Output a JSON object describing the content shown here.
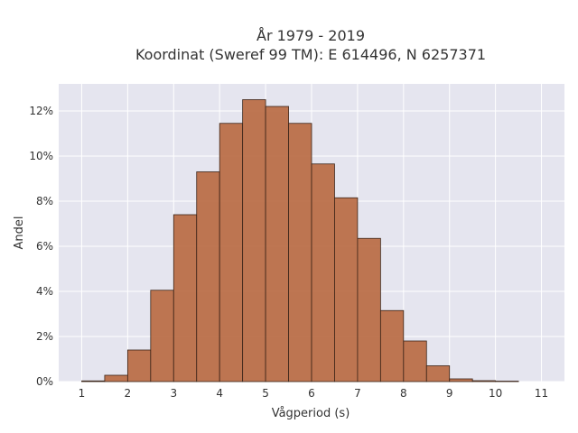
{
  "chart_data": {
    "type": "bar",
    "title": "År 1979 - 2019",
    "subtitle": "Koordinat (Sweref 99 TM): E 614496, N 6257371",
    "xlabel": "Vågperiod (s)",
    "ylabel": "Andel",
    "bin_width": 0.5,
    "bins": [
      {
        "x": 1.0,
        "value": 0.03
      },
      {
        "x": 1.5,
        "value": 0.28
      },
      {
        "x": 2.0,
        "value": 1.4
      },
      {
        "x": 2.5,
        "value": 4.05
      },
      {
        "x": 3.0,
        "value": 7.4
      },
      {
        "x": 3.5,
        "value": 9.3
      },
      {
        "x": 4.0,
        "value": 11.45
      },
      {
        "x": 4.5,
        "value": 12.5
      },
      {
        "x": 5.0,
        "value": 12.2
      },
      {
        "x": 5.5,
        "value": 11.45
      },
      {
        "x": 6.0,
        "value": 9.65
      },
      {
        "x": 6.5,
        "value": 8.15
      },
      {
        "x": 7.0,
        "value": 6.35
      },
      {
        "x": 7.5,
        "value": 3.15
      },
      {
        "x": 8.0,
        "value": 1.8
      },
      {
        "x": 8.5,
        "value": 0.7
      },
      {
        "x": 9.0,
        "value": 0.12
      },
      {
        "x": 9.5,
        "value": 0.04
      },
      {
        "x": 10.0,
        "value": 0.02
      }
    ],
    "xlim": [
      0.5,
      11.5
    ],
    "ylim": [
      0,
      13.2
    ],
    "xticks": [
      1,
      2,
      3,
      4,
      5,
      6,
      7,
      8,
      9,
      10,
      11
    ],
    "yticks": [
      0,
      2,
      4,
      6,
      8,
      10,
      12
    ],
    "ytick_suffix": "%",
    "grid": true,
    "bar_color": "#b8683f",
    "bar_edge_color": "#3a2418",
    "plot_background": "#e5e5ef",
    "grid_color": "#ffffff"
  }
}
